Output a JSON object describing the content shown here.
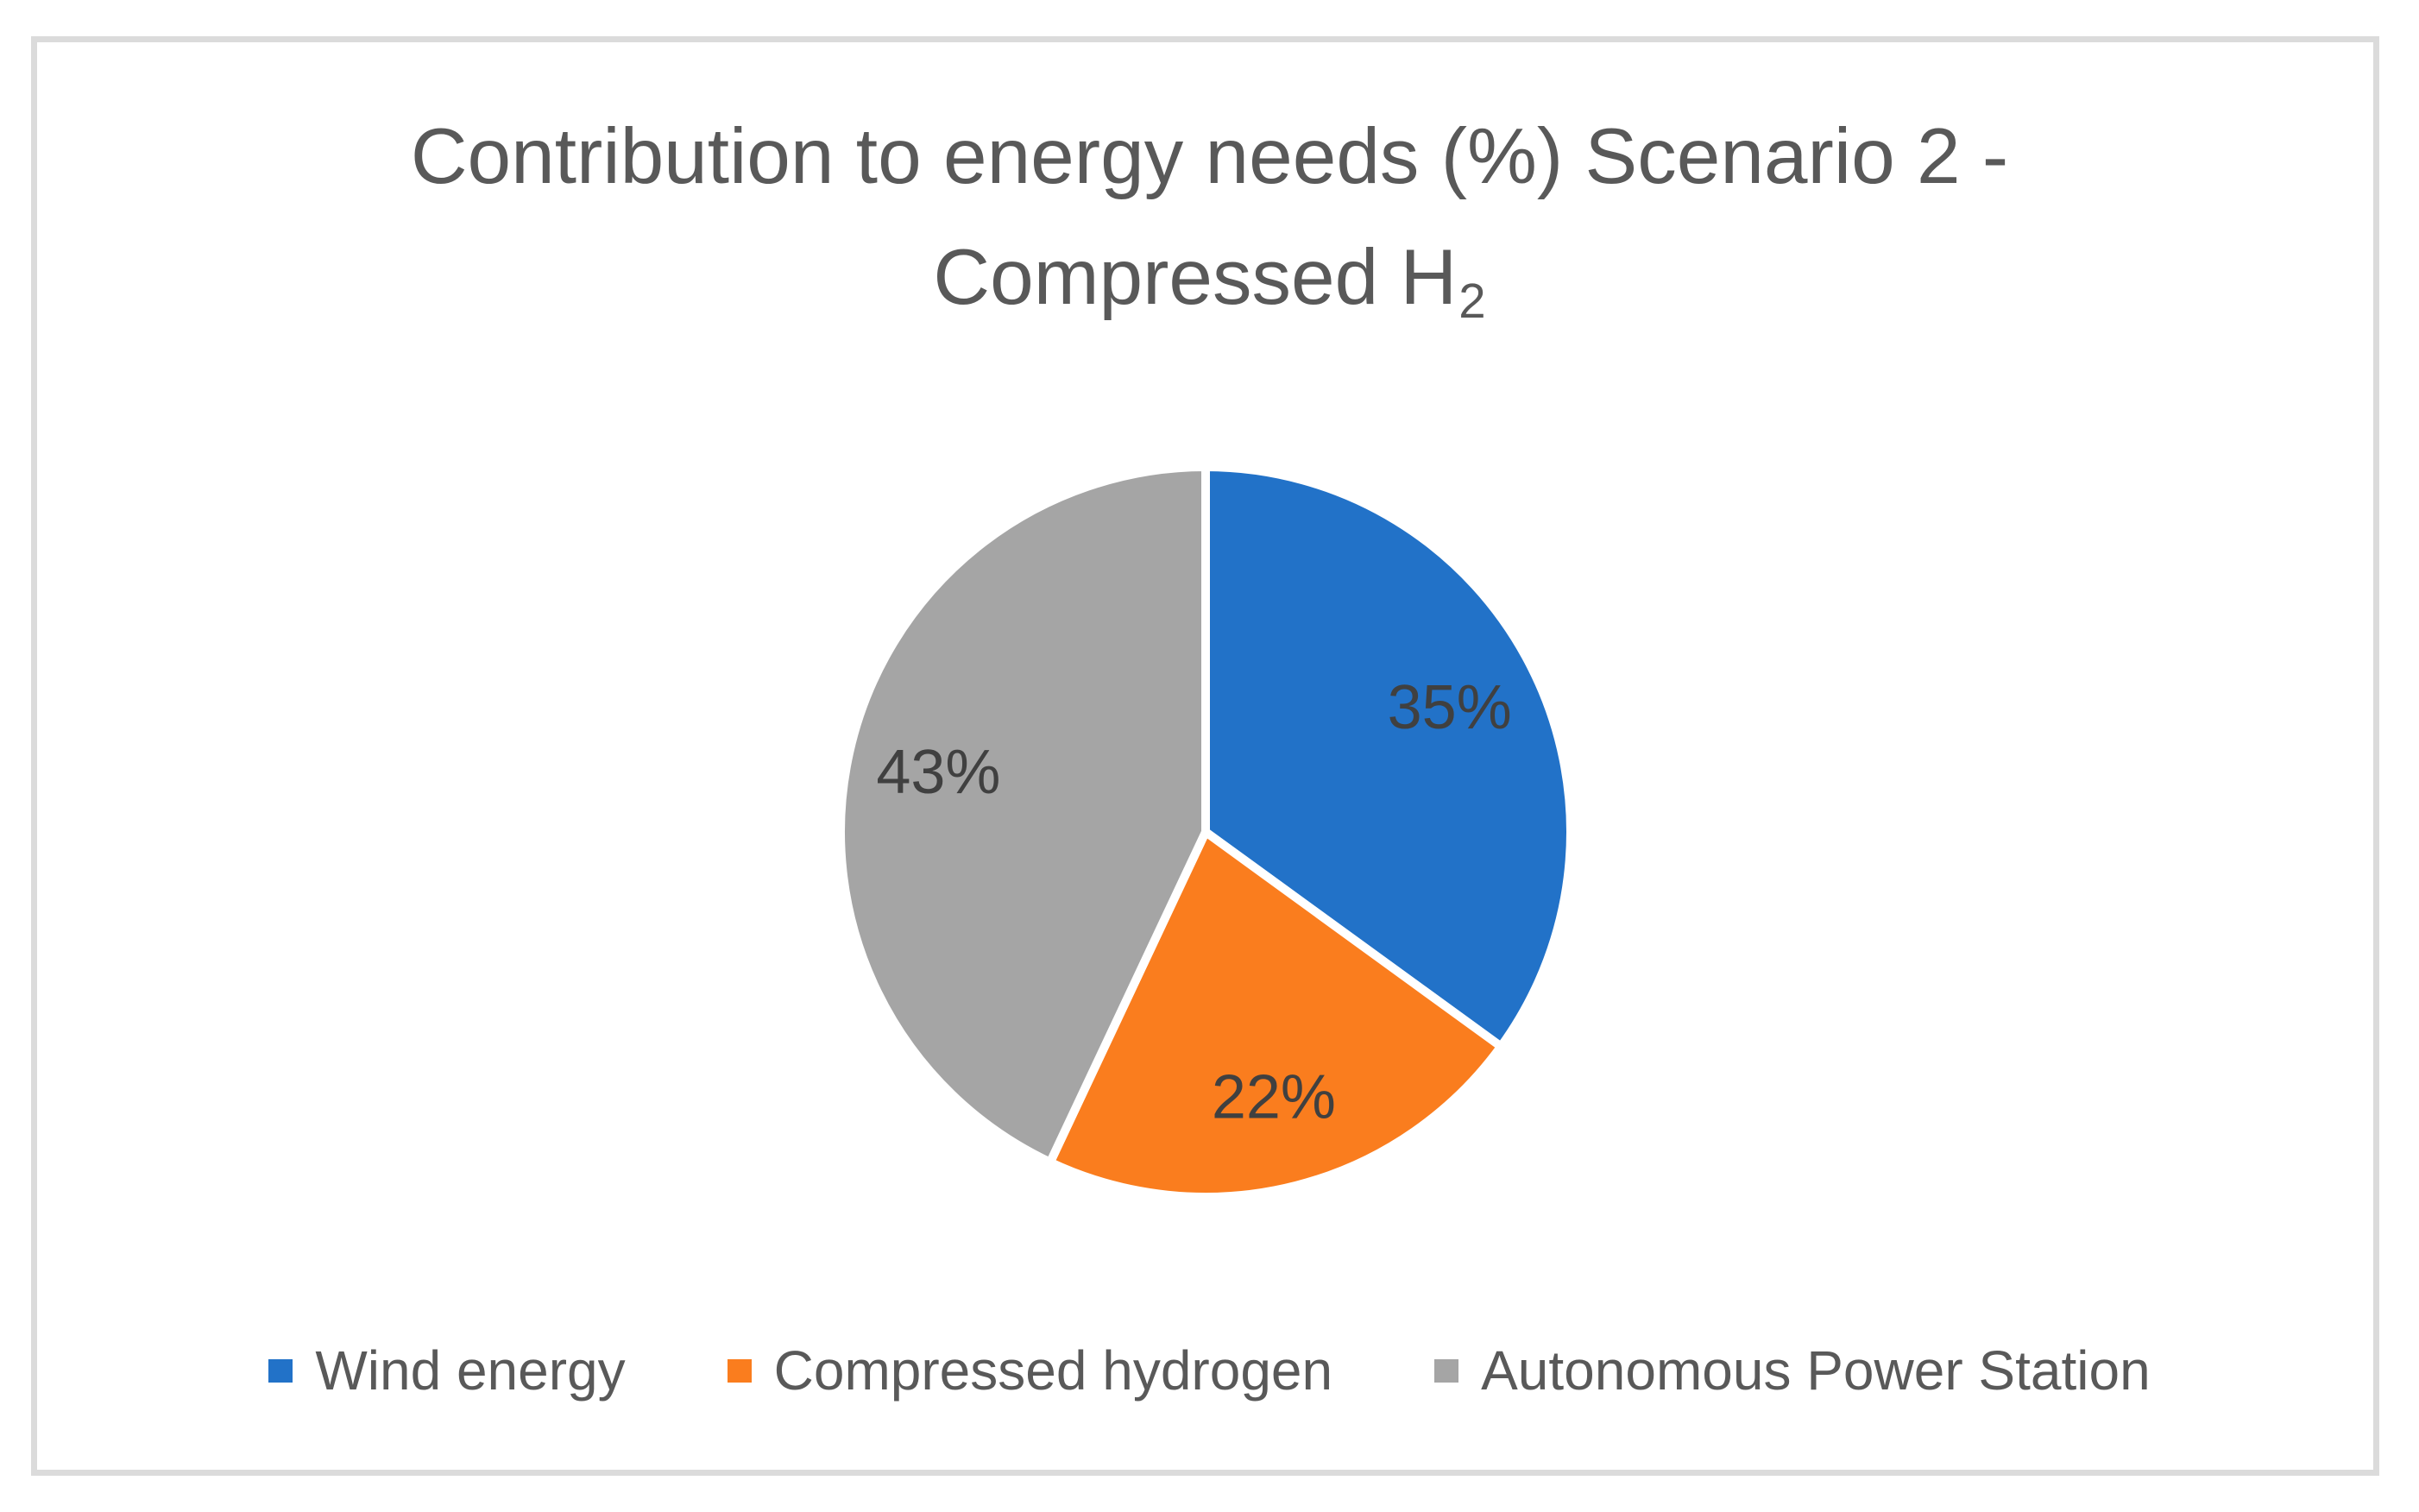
{
  "chart_data": {
    "type": "pie",
    "title": "Contribution to energy needs (%) Scenario 2 - Compressed H2",
    "title_line1": "Contribution to energy needs (%) Scenario 2 -",
    "title_line2_main": "Compressed H",
    "title_line2_sub": "2",
    "categories": [
      "Wind energy",
      "Compressed hydrogen",
      "Autonomous Power Station"
    ],
    "values": [
      35,
      22,
      43
    ],
    "data_labels": [
      "35%",
      "22%",
      "43%"
    ],
    "slice_colors": [
      "#2272C8",
      "#FA7D1E",
      "#A5A5A5"
    ],
    "start_angle_deg": 0,
    "direction": "clockwise",
    "legend_position": "bottom",
    "grid": false
  },
  "styles": {
    "title_color": "#595959",
    "data_label_color": "#404040",
    "legend_text_color": "#595959",
    "frame_border_color": "#DBDBDB",
    "slice_separator_color": "#FFFFFF",
    "background_color": "#FFFFFF"
  }
}
